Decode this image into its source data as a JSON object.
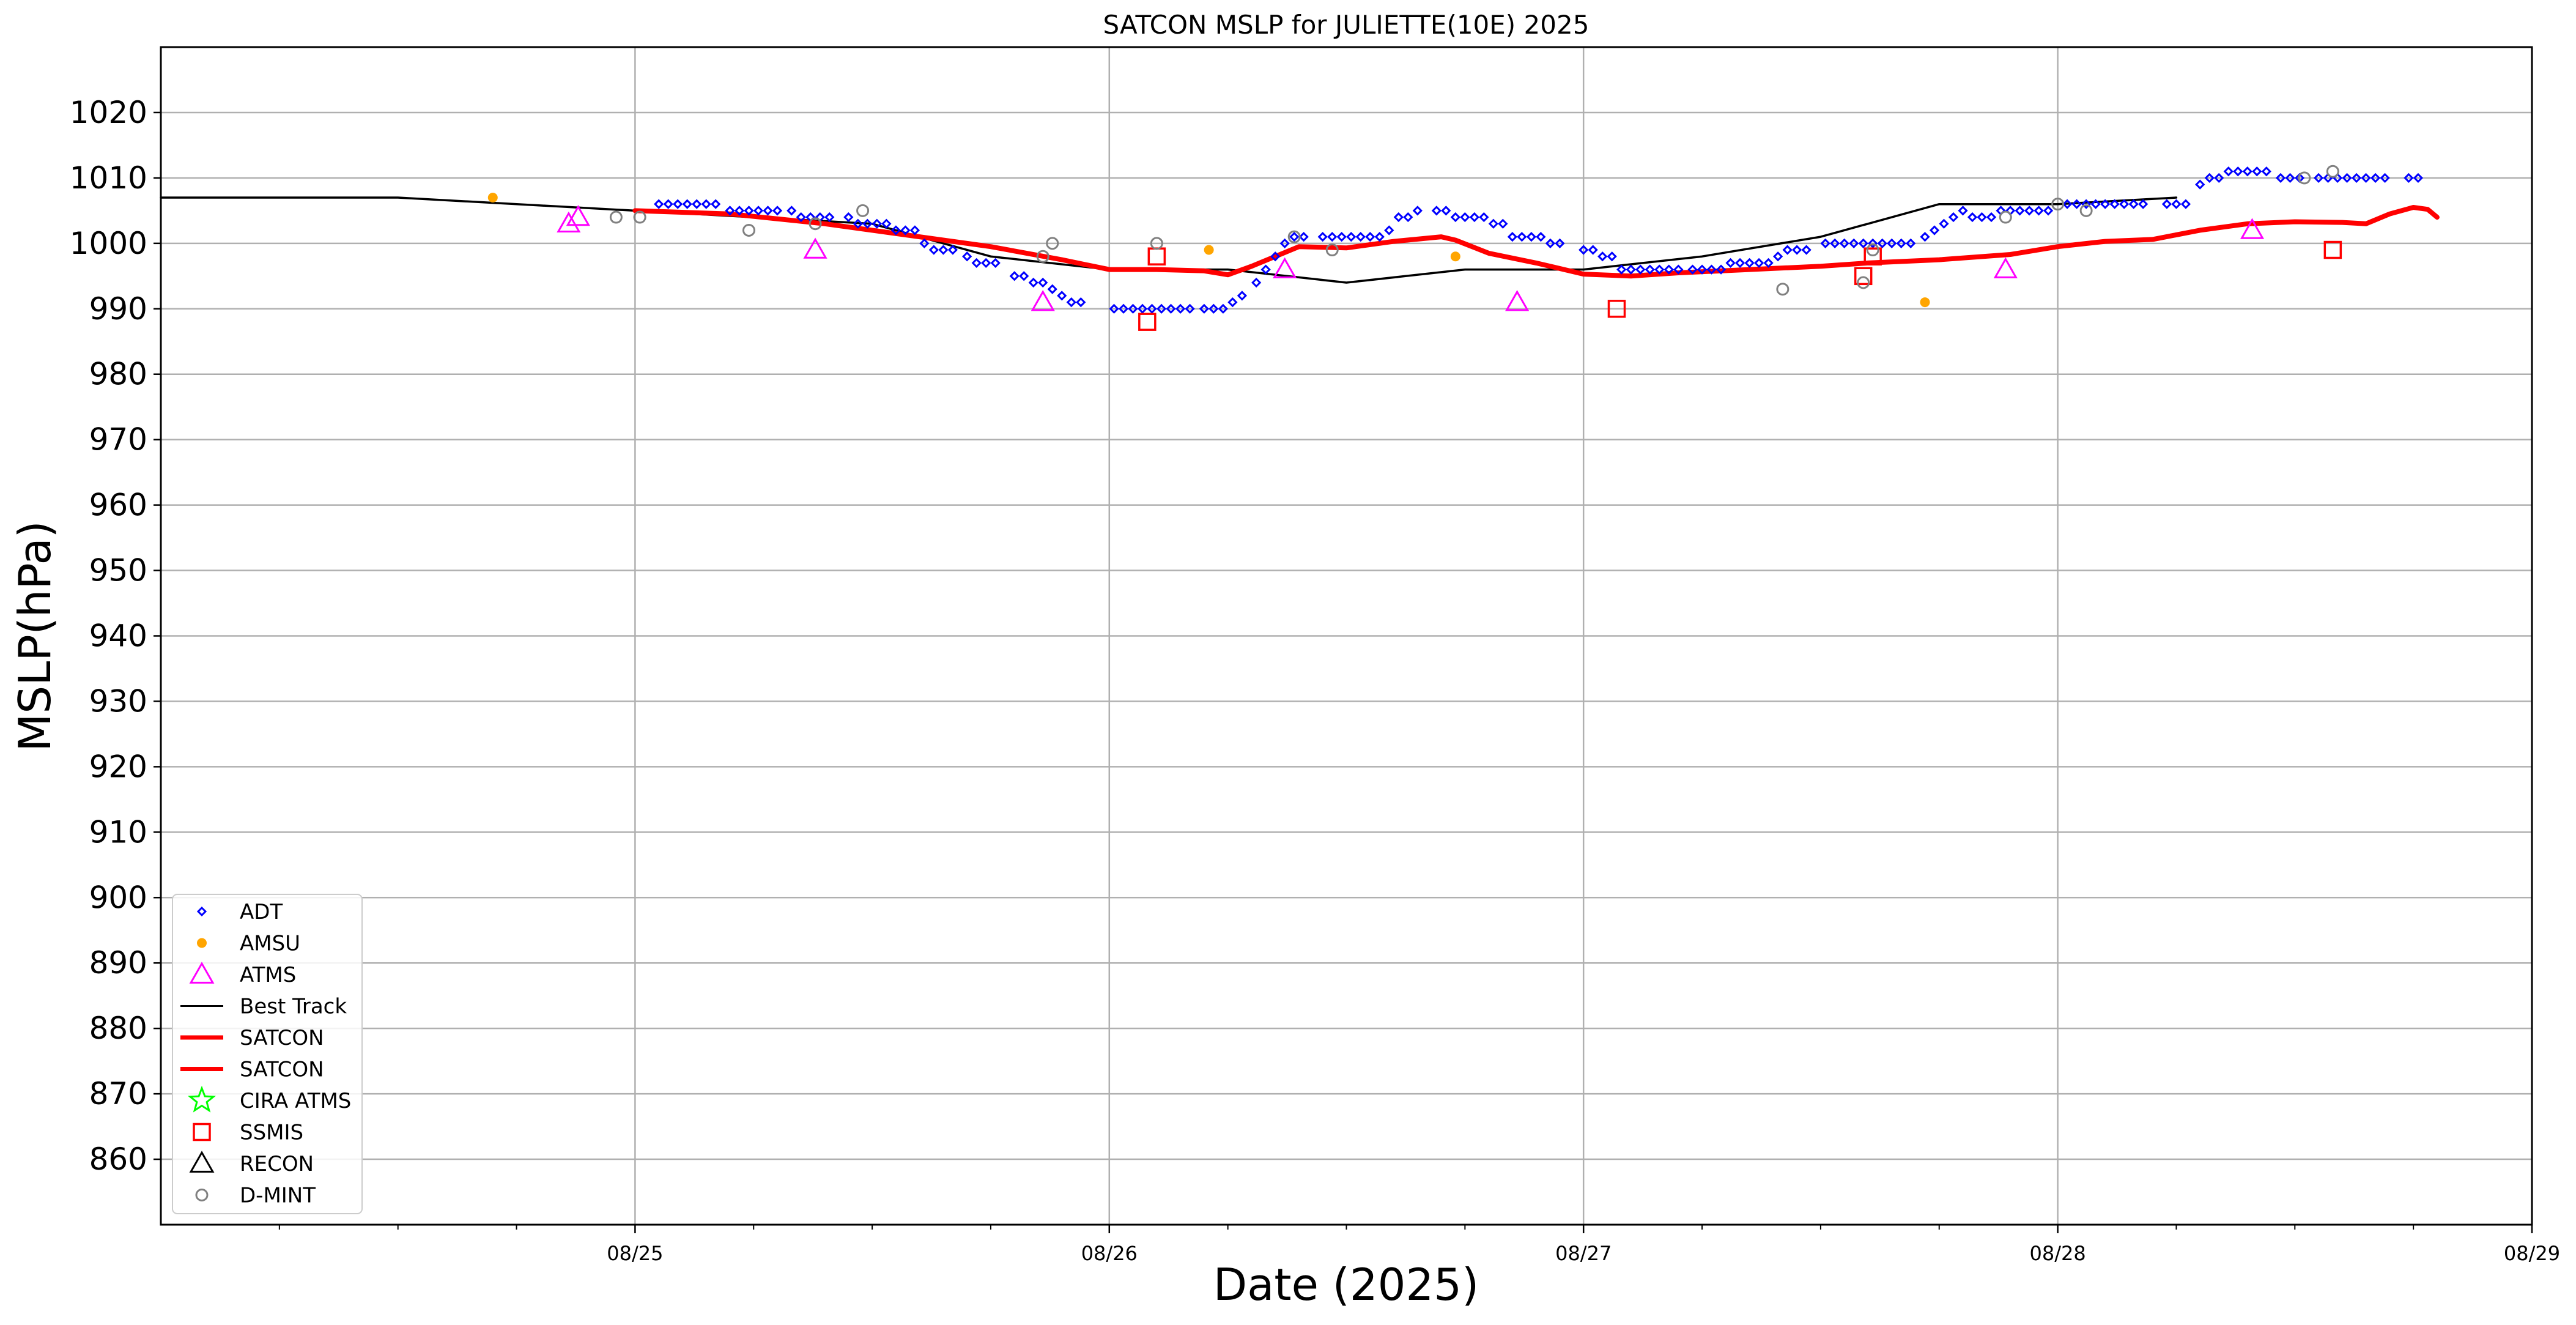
{
  "chart_data": {
    "type": "scatter",
    "title": "SATCON MSLP for JULIETTE(10E) 2025",
    "xlabel": "Date (2025)",
    "ylabel": "MSLP(hPa)",
    "xlim": [
      0,
      5
    ],
    "ylim": [
      850,
      1030
    ],
    "yticks": [
      860,
      870,
      880,
      890,
      900,
      910,
      920,
      930,
      940,
      950,
      960,
      970,
      980,
      990,
      1000,
      1010,
      1020
    ],
    "xticks": [
      {
        "x": 1,
        "label": "08/25"
      },
      {
        "x": 2,
        "label": "08/26"
      },
      {
        "x": 3,
        "label": "08/27"
      },
      {
        "x": 4,
        "label": "08/28"
      },
      {
        "x": 5,
        "label": "08/29"
      }
    ],
    "grid": true,
    "legend_position": "lower-left",
    "legend": [
      {
        "label": "ADT",
        "marker": "diamond",
        "color": "#0000ff"
      },
      {
        "label": "AMSU",
        "marker": "dot",
        "color": "#ffa500"
      },
      {
        "label": "ATMS",
        "marker": "triangle",
        "color": "#ff00ff"
      },
      {
        "label": "Best Track",
        "marker": "line",
        "color": "#000000"
      },
      {
        "label": "SATCON",
        "marker": "thickline",
        "color": "#ff0000"
      },
      {
        "label": "SATCON",
        "marker": "thickline",
        "color": "#ff0000"
      },
      {
        "label": "CIRA ATMS",
        "marker": "star",
        "color": "#00ff00"
      },
      {
        "label": "SSMIS",
        "marker": "square",
        "color": "#ff0000"
      },
      {
        "label": "RECON",
        "marker": "triangle",
        "color": "#000000"
      },
      {
        "label": "D-MINT",
        "marker": "circle",
        "color": "#808080"
      }
    ],
    "series": [
      {
        "name": "Best Track",
        "style": "line",
        "color": "#000000",
        "points": [
          [
            0,
            1007
          ],
          [
            0.5,
            1007
          ],
          [
            1.0,
            1005
          ],
          [
            1.25,
            1004
          ],
          [
            1.5,
            1003
          ],
          [
            1.75,
            998
          ],
          [
            2.0,
            996
          ],
          [
            2.25,
            996
          ],
          [
            2.5,
            994
          ],
          [
            2.75,
            996
          ],
          [
            3.0,
            996
          ],
          [
            3.25,
            998
          ],
          [
            3.5,
            1001
          ],
          [
            3.75,
            1006
          ],
          [
            4.0,
            1006
          ],
          [
            4.25,
            1007
          ]
        ]
      },
      {
        "name": "SATCON",
        "style": "thickline",
        "color": "#ff0000",
        "points": [
          [
            1.0,
            1005
          ],
          [
            1.2,
            1004.5
          ],
          [
            1.4,
            1003
          ],
          [
            1.6,
            1001
          ],
          [
            1.75,
            999.5
          ],
          [
            1.9,
            997.5
          ],
          [
            2.0,
            996
          ],
          [
            2.1,
            996
          ],
          [
            2.2,
            995.8
          ],
          [
            2.25,
            995.2
          ],
          [
            2.3,
            996.5
          ],
          [
            2.4,
            999.5
          ],
          [
            2.5,
            999.3
          ],
          [
            2.6,
            1000.3
          ],
          [
            2.7,
            1001
          ],
          [
            2.73,
            1000.5
          ],
          [
            2.8,
            998.5
          ],
          [
            2.9,
            997
          ],
          [
            3.0,
            995.3
          ],
          [
            3.1,
            995
          ],
          [
            3.2,
            995.5
          ],
          [
            3.35,
            996
          ],
          [
            3.5,
            996.5
          ],
          [
            3.6,
            997
          ],
          [
            3.75,
            997.5
          ],
          [
            3.9,
            998.3
          ],
          [
            4.0,
            999.5
          ],
          [
            4.1,
            1000.3
          ],
          [
            4.2,
            1000.6
          ],
          [
            4.3,
            1002
          ],
          [
            4.4,
            1003
          ],
          [
            4.5,
            1003.3
          ],
          [
            4.6,
            1003.2
          ],
          [
            4.65,
            1003
          ],
          [
            4.7,
            1004.5
          ],
          [
            4.75,
            1005.5
          ],
          [
            4.78,
            1005.2
          ],
          [
            4.8,
            1004
          ]
        ]
      },
      {
        "name": "ADT",
        "style": "diamond",
        "color": "#0000ff",
        "points": [
          [
            1.05,
            1006
          ],
          [
            1.07,
            1006
          ],
          [
            1.09,
            1006
          ],
          [
            1.11,
            1006
          ],
          [
            1.13,
            1006
          ],
          [
            1.15,
            1006
          ],
          [
            1.17,
            1006
          ],
          [
            1.2,
            1005
          ],
          [
            1.22,
            1005
          ],
          [
            1.24,
            1005
          ],
          [
            1.26,
            1005
          ],
          [
            1.28,
            1005
          ],
          [
            1.3,
            1005
          ],
          [
            1.33,
            1005
          ],
          [
            1.35,
            1004
          ],
          [
            1.37,
            1004
          ],
          [
            1.39,
            1004
          ],
          [
            1.41,
            1004
          ],
          [
            1.45,
            1004
          ],
          [
            1.47,
            1003
          ],
          [
            1.49,
            1003
          ],
          [
            1.51,
            1003
          ],
          [
            1.53,
            1003
          ],
          [
            1.55,
            1002
          ],
          [
            1.57,
            1002
          ],
          [
            1.59,
            1002
          ],
          [
            1.61,
            1000
          ],
          [
            1.63,
            999
          ],
          [
            1.65,
            999
          ],
          [
            1.67,
            999
          ],
          [
            1.7,
            998
          ],
          [
            1.72,
            997
          ],
          [
            1.74,
            997
          ],
          [
            1.76,
            997
          ],
          [
            1.8,
            995
          ],
          [
            1.82,
            995
          ],
          [
            1.84,
            994
          ],
          [
            1.86,
            994
          ],
          [
            1.88,
            993
          ],
          [
            1.9,
            992
          ],
          [
            1.92,
            991
          ],
          [
            1.94,
            991
          ],
          [
            2.01,
            990
          ],
          [
            2.03,
            990
          ],
          [
            2.05,
            990
          ],
          [
            2.07,
            990
          ],
          [
            2.09,
            990
          ],
          [
            2.11,
            990
          ],
          [
            2.13,
            990
          ],
          [
            2.15,
            990
          ],
          [
            2.17,
            990
          ],
          [
            2.2,
            990
          ],
          [
            2.22,
            990
          ],
          [
            2.24,
            990
          ],
          [
            2.26,
            991
          ],
          [
            2.28,
            992
          ],
          [
            2.31,
            994
          ],
          [
            2.33,
            996
          ],
          [
            2.35,
            998
          ],
          [
            2.37,
            1000
          ],
          [
            2.39,
            1001
          ],
          [
            2.41,
            1001
          ],
          [
            2.45,
            1001
          ],
          [
            2.47,
            1001
          ],
          [
            2.49,
            1001
          ],
          [
            2.51,
            1001
          ],
          [
            2.53,
            1001
          ],
          [
            2.55,
            1001
          ],
          [
            2.57,
            1001
          ],
          [
            2.59,
            1002
          ],
          [
            2.61,
            1004
          ],
          [
            2.63,
            1004
          ],
          [
            2.65,
            1005
          ],
          [
            2.69,
            1005
          ],
          [
            2.71,
            1005
          ],
          [
            2.73,
            1004
          ],
          [
            2.75,
            1004
          ],
          [
            2.77,
            1004
          ],
          [
            2.79,
            1004
          ],
          [
            2.81,
            1003
          ],
          [
            2.83,
            1003
          ],
          [
            2.85,
            1001
          ],
          [
            2.87,
            1001
          ],
          [
            2.89,
            1001
          ],
          [
            2.91,
            1001
          ],
          [
            2.93,
            1000
          ],
          [
            2.95,
            1000
          ],
          [
            3.0,
            999
          ],
          [
            3.02,
            999
          ],
          [
            3.04,
            998
          ],
          [
            3.06,
            998
          ],
          [
            3.08,
            996
          ],
          [
            3.1,
            996
          ],
          [
            3.12,
            996
          ],
          [
            3.14,
            996
          ],
          [
            3.16,
            996
          ],
          [
            3.18,
            996
          ],
          [
            3.2,
            996
          ],
          [
            3.23,
            996
          ],
          [
            3.25,
            996
          ],
          [
            3.27,
            996
          ],
          [
            3.29,
            996
          ],
          [
            3.31,
            997
          ],
          [
            3.33,
            997
          ],
          [
            3.35,
            997
          ],
          [
            3.37,
            997
          ],
          [
            3.39,
            997
          ],
          [
            3.41,
            998
          ],
          [
            3.43,
            999
          ],
          [
            3.45,
            999
          ],
          [
            3.47,
            999
          ],
          [
            3.51,
            1000
          ],
          [
            3.53,
            1000
          ],
          [
            3.55,
            1000
          ],
          [
            3.57,
            1000
          ],
          [
            3.59,
            1000
          ],
          [
            3.61,
            1000
          ],
          [
            3.63,
            1000
          ],
          [
            3.65,
            1000
          ],
          [
            3.67,
            1000
          ],
          [
            3.69,
            1000
          ],
          [
            3.72,
            1001
          ],
          [
            3.74,
            1002
          ],
          [
            3.76,
            1003
          ],
          [
            3.78,
            1004
          ],
          [
            3.8,
            1005
          ],
          [
            3.82,
            1004
          ],
          [
            3.84,
            1004
          ],
          [
            3.86,
            1004
          ],
          [
            3.88,
            1005
          ],
          [
            3.9,
            1005
          ],
          [
            3.92,
            1005
          ],
          [
            3.94,
            1005
          ],
          [
            3.96,
            1005
          ],
          [
            3.98,
            1005
          ],
          [
            4.02,
            1006
          ],
          [
            4.04,
            1006
          ],
          [
            4.06,
            1006
          ],
          [
            4.08,
            1006
          ],
          [
            4.1,
            1006
          ],
          [
            4.12,
            1006
          ],
          [
            4.14,
            1006
          ],
          [
            4.16,
            1006
          ],
          [
            4.18,
            1006
          ],
          [
            4.23,
            1006
          ],
          [
            4.25,
            1006
          ],
          [
            4.27,
            1006
          ],
          [
            4.3,
            1009
          ],
          [
            4.32,
            1010
          ],
          [
            4.34,
            1010
          ],
          [
            4.36,
            1011
          ],
          [
            4.38,
            1011
          ],
          [
            4.4,
            1011
          ],
          [
            4.42,
            1011
          ],
          [
            4.44,
            1011
          ],
          [
            4.47,
            1010
          ],
          [
            4.49,
            1010
          ],
          [
            4.51,
            1010
          ],
          [
            4.55,
            1010
          ],
          [
            4.57,
            1010
          ],
          [
            4.59,
            1010
          ],
          [
            4.61,
            1010
          ],
          [
            4.63,
            1010
          ],
          [
            4.65,
            1010
          ],
          [
            4.67,
            1010
          ],
          [
            4.69,
            1010
          ],
          [
            4.74,
            1010
          ],
          [
            4.76,
            1010
          ]
        ]
      },
      {
        "name": "AMSU",
        "style": "dot",
        "color": "#ffa500",
        "points": [
          [
            0.7,
            1007
          ],
          [
            2.21,
            999
          ],
          [
            2.73,
            998
          ],
          [
            3.72,
            991
          ]
        ]
      },
      {
        "name": "ATMS",
        "style": "triangle",
        "color": "#ff00ff",
        "points": [
          [
            0.86,
            1003
          ],
          [
            0.88,
            1004
          ],
          [
            1.38,
            999
          ],
          [
            1.86,
            991
          ],
          [
            2.37,
            996
          ],
          [
            2.86,
            991
          ],
          [
            4.41,
            1002
          ],
          [
            3.89,
            996
          ]
        ]
      },
      {
        "name": "SSMIS",
        "style": "square",
        "color": "#ff0000",
        "points": [
          [
            2.08,
            988
          ],
          [
            2.1,
            998
          ],
          [
            3.07,
            990
          ],
          [
            3.59,
            995
          ],
          [
            3.61,
            998
          ],
          [
            4.58,
            999
          ]
        ]
      },
      {
        "name": "D-MINT",
        "style": "circle",
        "color": "#808080",
        "points": [
          [
            0.96,
            1004
          ],
          [
            1.01,
            1004
          ],
          [
            1.24,
            1002
          ],
          [
            1.38,
            1003
          ],
          [
            1.48,
            1005
          ],
          [
            1.86,
            998
          ],
          [
            1.88,
            1000
          ],
          [
            2.1,
            1000
          ],
          [
            2.39,
            1001
          ],
          [
            2.47,
            999
          ],
          [
            3.42,
            993
          ],
          [
            3.59,
            994
          ],
          [
            3.61,
            999
          ],
          [
            3.89,
            1004
          ],
          [
            4.0,
            1006
          ],
          [
            4.06,
            1005
          ],
          [
            4.52,
            1010
          ],
          [
            4.58,
            1011
          ]
        ]
      }
    ]
  }
}
